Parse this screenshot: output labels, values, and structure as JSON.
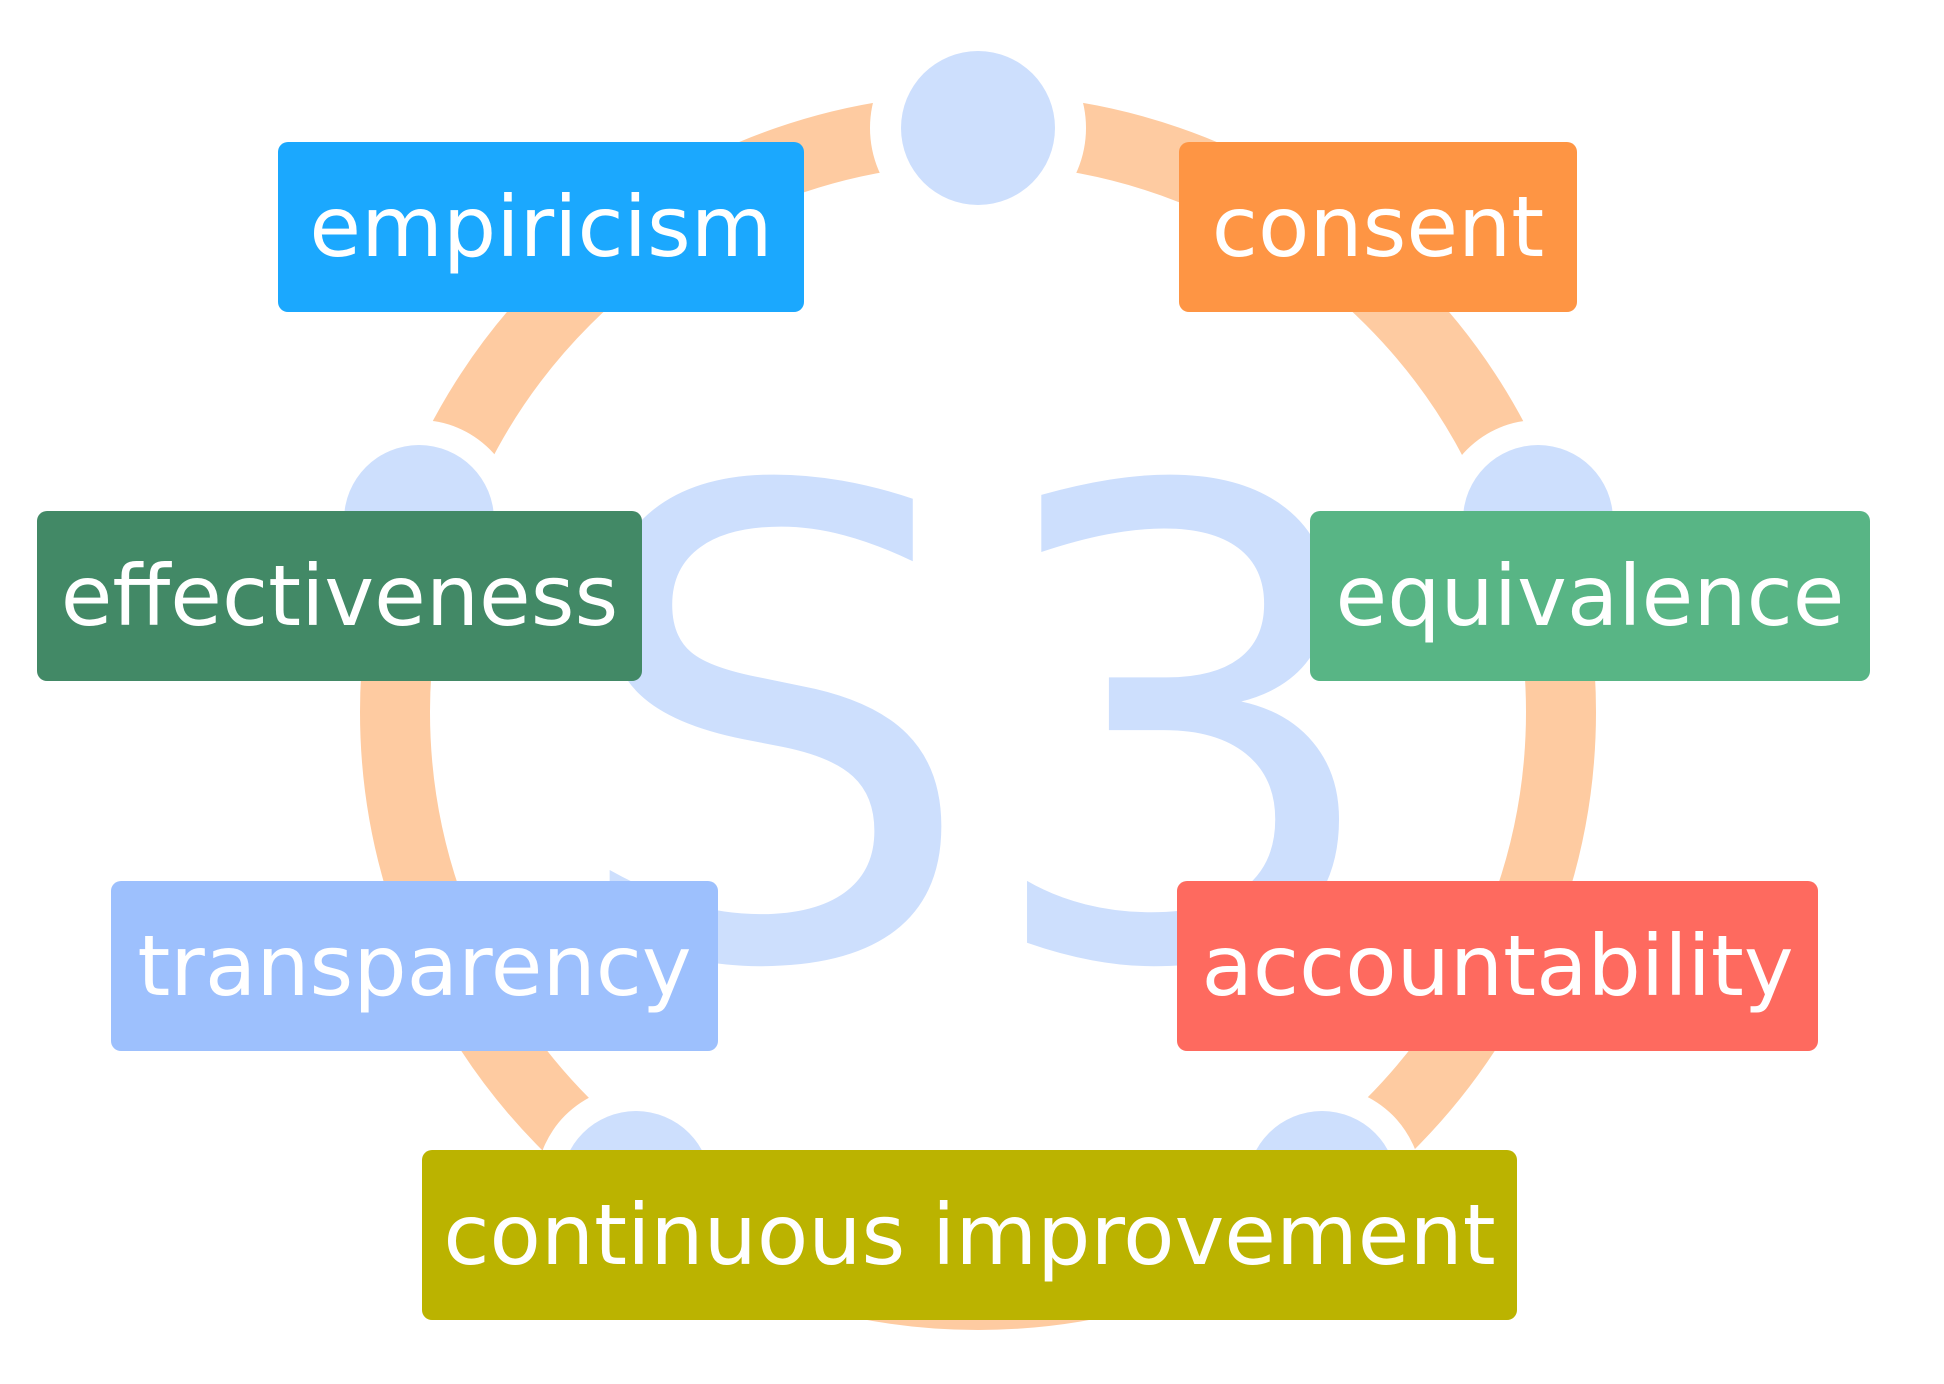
{
  "diagram": {
    "center_label": "S3",
    "colors": {
      "ring": "#fecba1",
      "nodes": "#cddffd",
      "center_label": "#cddffd",
      "text": "#ffffff"
    },
    "labels": [
      {
        "id": "empiricism",
        "text": "empiricism",
        "color": "#1ba8fe"
      },
      {
        "id": "consent",
        "text": "consent",
        "color": "#fe9544"
      },
      {
        "id": "effectiveness",
        "text": "effectiveness",
        "color": "#428966"
      },
      {
        "id": "equivalence",
        "text": "equivalence",
        "color": "#58b585"
      },
      {
        "id": "transparency",
        "text": "transparency",
        "color": "#9dc0fd"
      },
      {
        "id": "accountability",
        "text": "accountability",
        "color": "#fe6a5f"
      },
      {
        "id": "continuous-improvement",
        "text": "continuous improvement",
        "color": "#bbb300"
      }
    ]
  }
}
